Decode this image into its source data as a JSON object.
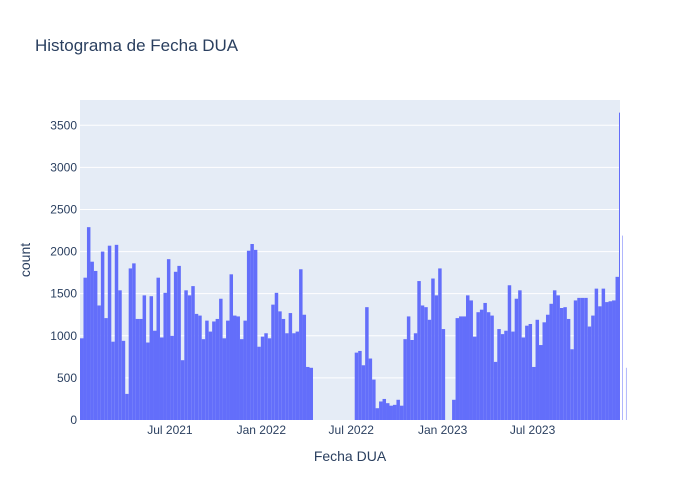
{
  "chart_data": {
    "type": "bar",
    "title": "Histograma de Fecha DUA",
    "xlabel": "Fecha DUA",
    "ylabel": "count",
    "ylim": [
      0,
      3800
    ],
    "yticks": [
      0,
      500,
      1000,
      1500,
      2000,
      2500,
      3000,
      3500
    ],
    "xticks": [
      {
        "label": "Jul 2021",
        "date": "2021-07-01"
      },
      {
        "label": "Jan 2022",
        "date": "2022-01-01"
      },
      {
        "label": "Jul 2022",
        "date": "2022-07-01"
      },
      {
        "label": "Jan 2023",
        "date": "2023-01-01"
      },
      {
        "label": "Jul 2023",
        "date": "2023-07-01"
      }
    ],
    "x_range": [
      "2021-01-01",
      "2023-12-24"
    ],
    "bin_days": 7,
    "bin_start": "2021-01-01",
    "values": [
      970,
      1690,
      2290,
      1880,
      1770,
      1360,
      2000,
      1210,
      2070,
      930,
      2080,
      1540,
      940,
      310,
      1800,
      1860,
      1200,
      1200,
      1480,
      920,
      1470,
      1060,
      1690,
      980,
      1510,
      1910,
      1000,
      1760,
      1830,
      710,
      1540,
      1480,
      1590,
      1260,
      1240,
      960,
      1180,
      1050,
      1170,
      1200,
      1440,
      970,
      1180,
      1730,
      1240,
      1230,
      960,
      1180,
      2010,
      2090,
      2020,
      870,
      990,
      1030,
      970,
      1370,
      1510,
      1290,
      1200,
      1030,
      1270,
      1030,
      1050,
      1790,
      1250,
      630,
      620,
      0,
      0,
      0,
      0,
      0,
      0,
      0,
      0,
      0,
      0,
      0,
      0,
      800,
      820,
      650,
      1340,
      730,
      480,
      140,
      220,
      250,
      200,
      170,
      180,
      240,
      170,
      960,
      1230,
      950,
      1030,
      1650,
      1360,
      1340,
      1190,
      1680,
      1480,
      1800,
      1080,
      0,
      0,
      240,
      1210,
      1230,
      1230,
      1480,
      1420,
      990,
      1280,
      1310,
      1390,
      1280,
      1240,
      690,
      1080,
      1020,
      1060,
      1600,
      1050,
      1440,
      1540,
      980,
      1120,
      1140,
      630,
      1190,
      890,
      1160,
      1250,
      1380,
      1540,
      1480,
      1330,
      1340,
      1200,
      840,
      1420,
      1450,
      1450,
      1450,
      1110,
      1240,
      1560,
      1350,
      1560,
      1400,
      1410,
      1420,
      1700,
      3650,
      2190,
      620
    ],
    "grid": true,
    "legend": "none",
    "colors": {
      "bar": "#636efa",
      "plot_bg": "#e5ecf6",
      "grid": "#ffffff",
      "text": "#2a3f5f"
    }
  }
}
